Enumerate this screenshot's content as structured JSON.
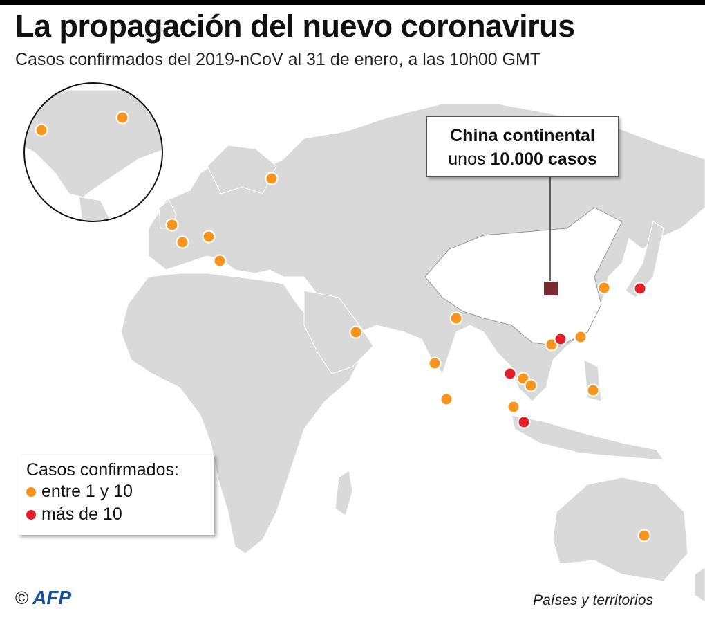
{
  "title": "La propagación del nuevo coronavirus",
  "subtitle": "Casos confirmados del 2019-nCoV al 31 de enero, a las 10h00 GMT",
  "callout": {
    "line1": "China continental",
    "line2_prefix": "unos ",
    "line2_bold": "10.000 casos"
  },
  "legend": {
    "title": "Casos confirmados:",
    "items": [
      {
        "label": "entre 1 y 10",
        "color": "#f7941d"
      },
      {
        "label": "más de 10",
        "color": "#e3202a"
      }
    ]
  },
  "colors": {
    "land": "#d9d9d9",
    "china": "#ffffff",
    "china_marker": "#7b2b2f",
    "low": "#f7941d",
    "high": "#e3202a"
  },
  "credit": {
    "copyright": "©",
    "logo": "AFP"
  },
  "footnote": "Países y territorios"
}
